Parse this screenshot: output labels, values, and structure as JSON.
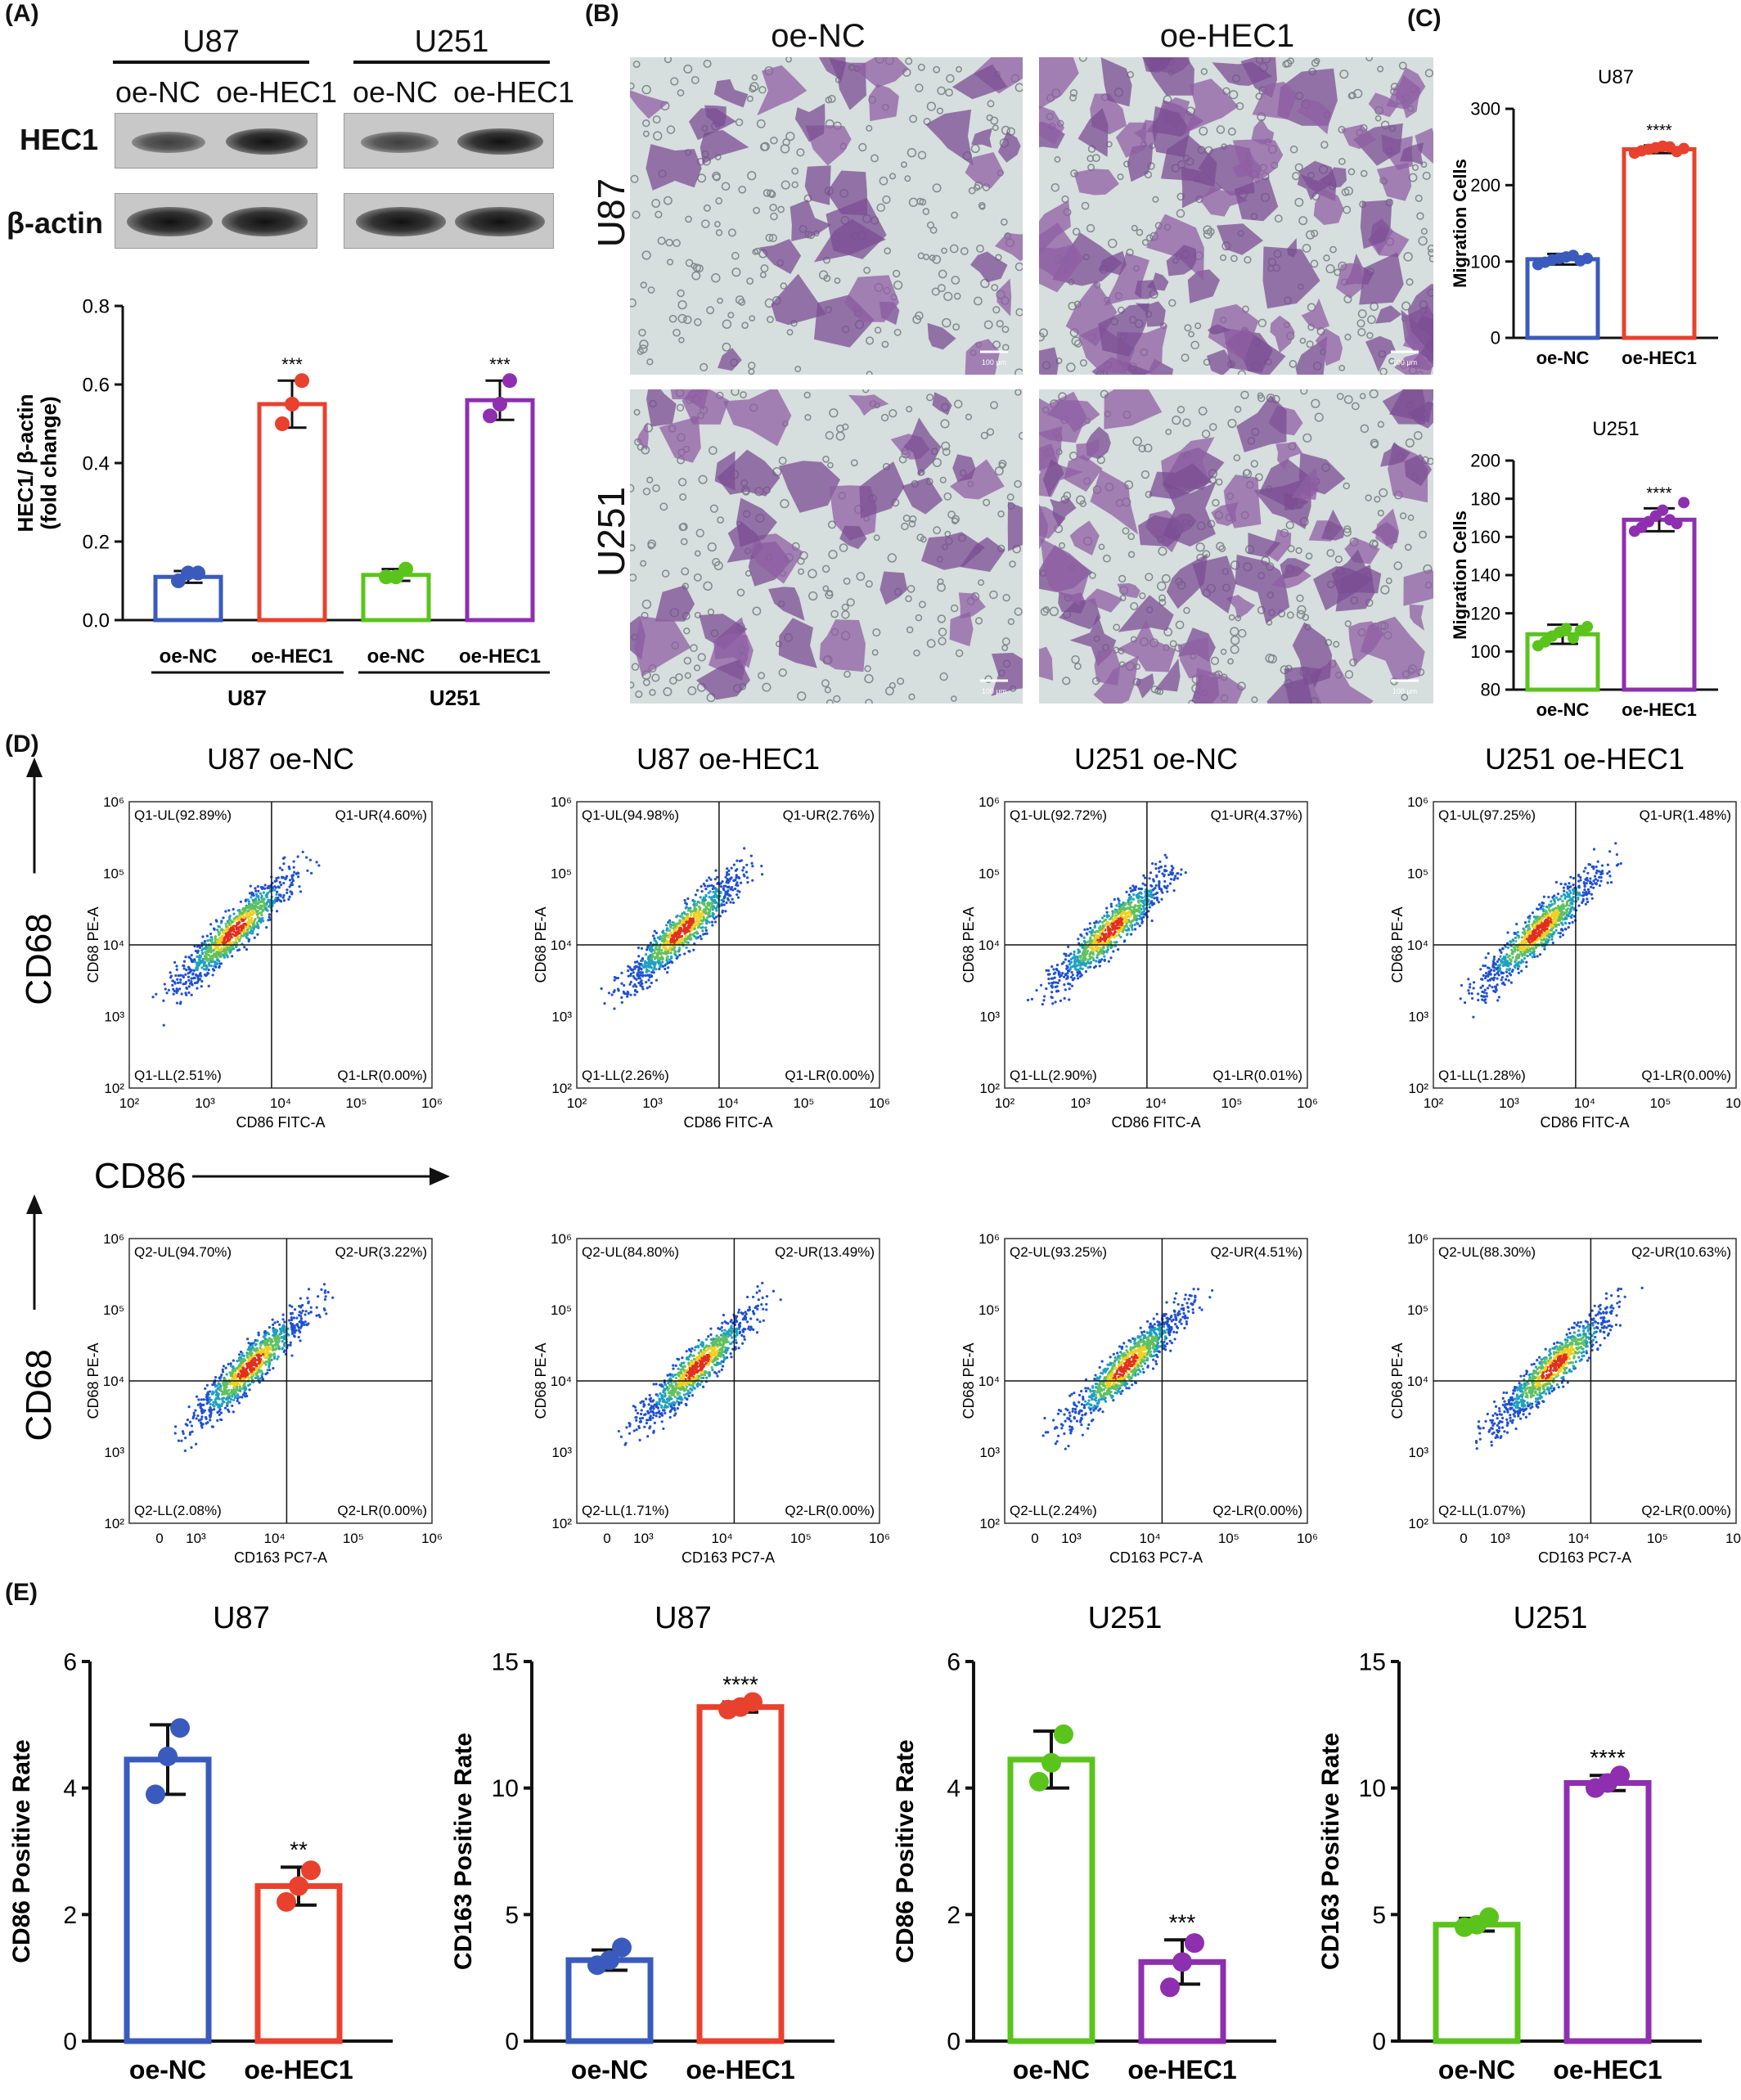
{
  "panels": {
    "a": "(A)",
    "b": "(B)",
    "c": "(C)",
    "d": "(D)",
    "e": "(E)"
  },
  "blot": {
    "groups": [
      "U87",
      "U251"
    ],
    "lanes": [
      "oe-NC",
      "oe-HEC1",
      "oe-NC",
      "oe-HEC1"
    ],
    "rows": [
      "HEC1",
      "β-actin"
    ]
  },
  "panel_b": {
    "columns": [
      "oe-NC",
      "oe-HEC1"
    ],
    "rows": [
      "U87",
      "U251"
    ],
    "scale_bar": "100 μm"
  },
  "flow": {
    "titles": [
      "U87   oe-NC",
      "U87   oe-HEC1",
      "U251   oe-NC",
      "U251   oe-HEC1"
    ],
    "row1": {
      "xlabel": "CD86 FITC-A",
      "ylabel": "CD68 PE-A",
      "big_x": "CD86",
      "big_y": "CD68",
      "quadrants": [
        [
          "Q1-UL(92.89%)",
          "Q1-UR(4.60%)",
          "Q1-LL(2.51%)",
          "Q1-LR(0.00%)"
        ],
        [
          "Q1-UL(94.98%)",
          "Q1-UR(2.76%)",
          "Q1-LL(2.26%)",
          "Q1-LR(0.00%)"
        ],
        [
          "Q1-UL(92.72%)",
          "Q1-UR(4.37%)",
          "Q1-LL(2.90%)",
          "Q1-LR(0.01%)"
        ],
        [
          "Q1-UL(97.25%)",
          "Q1-UR(1.48%)",
          "Q1-LL(1.28%)",
          "Q1-LR(0.00%)"
        ]
      ]
    },
    "row2": {
      "xlabel": "CD163 PC7-A",
      "ylabel": "CD68 PE-A",
      "big_x": "CD163",
      "big_y": "CD68",
      "quadrants": [
        [
          "Q2-UL(94.70%)",
          "Q2-UR(3.22%)",
          "Q2-LL(2.08%)",
          "Q2-LR(0.00%)"
        ],
        [
          "Q2-UL(84.80%)",
          "Q2-UR(13.49%)",
          "Q2-LL(1.71%)",
          "Q2-LR(0.00%)"
        ],
        [
          "Q2-UL(93.25%)",
          "Q2-UR(4.51%)",
          "Q2-LL(2.24%)",
          "Q2-LR(0.00%)"
        ],
        [
          "Q2-UL(88.30%)",
          "Q2-UR(10.63%)",
          "Q2-LL(1.07%)",
          "Q2-LR(0.00%)"
        ]
      ]
    }
  },
  "chart_data": [
    {
      "id": "A",
      "type": "bar",
      "ylabel": "HEC1/ β-actin (fold change)",
      "ylim": [
        0,
        0.8
      ],
      "yticks": [
        "0.0",
        "0.2",
        "0.4",
        "0.6",
        "0.8"
      ],
      "categories": [
        "oe-NC",
        "oe-HEC1",
        "oe-NC",
        "oe-HEC1"
      ],
      "groups": [
        "U87",
        "U251"
      ],
      "values": [
        0.11,
        0.55,
        0.115,
        0.56
      ],
      "points": [
        [
          0.1,
          0.12,
          0.12
        ],
        [
          0.5,
          0.55,
          0.61
        ],
        [
          0.11,
          0.11,
          0.13
        ],
        [
          0.52,
          0.55,
          0.61
        ]
      ],
      "err": [
        0.015,
        0.06,
        0.015,
        0.05
      ],
      "sig": [
        "",
        "***",
        "",
        "***"
      ],
      "colors": [
        "#3a5bbd",
        "#e8412d",
        "#5ac41c",
        "#8e2fb0"
      ]
    },
    {
      "id": "C1",
      "type": "bar",
      "title": "U87",
      "ylabel": "Migration Cells",
      "ylim": [
        0,
        300
      ],
      "yticks": [
        "0",
        "100",
        "200",
        "300"
      ],
      "categories": [
        "oe-NC",
        "oe-HEC1"
      ],
      "values": [
        103,
        247
      ],
      "points": [
        [
          96,
          99,
          102,
          104,
          106,
          108,
          101,
          104
        ],
        [
          242,
          245,
          247,
          249,
          251,
          250,
          244,
          248
        ]
      ],
      "err": [
        7,
        5
      ],
      "sig": [
        "",
        "****"
      ],
      "colors": [
        "#3a5bbd",
        "#e8412d"
      ]
    },
    {
      "id": "C2",
      "type": "bar",
      "title": "U251",
      "ylabel": "Migration Cells",
      "ylim": [
        80,
        200
      ],
      "yticks": [
        "80",
        "100",
        "120",
        "140",
        "160",
        "180",
        "200"
      ],
      "categories": [
        "oe-NC",
        "oe-HEC1"
      ],
      "values": [
        109,
        169
      ],
      "points": [
        [
          103,
          105,
          108,
          110,
          112,
          107,
          111,
          113
        ],
        [
          163,
          165,
          168,
          171,
          174,
          169,
          167,
          178
        ]
      ],
      "err": [
        5,
        6
      ],
      "sig": [
        "",
        "****"
      ],
      "colors": [
        "#5ac41c",
        "#8e2fb0"
      ]
    },
    {
      "id": "E1",
      "type": "bar",
      "title": "U87",
      "ylabel": "CD86 Positive Rate",
      "ylim": [
        0,
        6
      ],
      "yticks": [
        "0",
        "2",
        "4",
        "6"
      ],
      "categories": [
        "oe-NC",
        "oe-HEC1"
      ],
      "values": [
        4.45,
        2.45
      ],
      "points": [
        [
          3.9,
          4.5,
          4.95
        ],
        [
          2.2,
          2.45,
          2.7
        ]
      ],
      "err": [
        0.55,
        0.3
      ],
      "sig": [
        "",
        "**"
      ],
      "colors": [
        "#3a5bbd",
        "#e8412d"
      ]
    },
    {
      "id": "E2",
      "type": "bar",
      "title": "U87",
      "ylabel": "CD163 Positive Rate",
      "ylim": [
        0,
        15
      ],
      "yticks": [
        "0",
        "5",
        "10",
        "15"
      ],
      "categories": [
        "oe-NC",
        "oe-HEC1"
      ],
      "values": [
        3.2,
        13.2
      ],
      "points": [
        [
          3.0,
          3.2,
          3.7
        ],
        [
          13.1,
          13.2,
          13.4
        ]
      ],
      "err": [
        0.4,
        0.2
      ],
      "sig": [
        "",
        "****"
      ],
      "colors": [
        "#3a5bbd",
        "#e8412d"
      ]
    },
    {
      "id": "E3",
      "type": "bar",
      "title": "U251",
      "ylabel": "CD86 Positive Rate",
      "ylim": [
        0,
        6
      ],
      "yticks": [
        "0",
        "2",
        "4",
        "6"
      ],
      "categories": [
        "oe-NC",
        "oe-HEC1"
      ],
      "values": [
        4.45,
        1.25
      ],
      "points": [
        [
          4.1,
          4.4,
          4.85
        ],
        [
          0.85,
          1.25,
          1.55
        ]
      ],
      "err": [
        0.45,
        0.35
      ],
      "sig": [
        "",
        "***"
      ],
      "colors": [
        "#5ac41c",
        "#8e2fb0"
      ]
    },
    {
      "id": "E4",
      "type": "bar",
      "title": "U251",
      "ylabel": "CD163 Positive Rate",
      "ylim": [
        0,
        15
      ],
      "yticks": [
        "0",
        "5",
        "10",
        "15"
      ],
      "categories": [
        "oe-NC",
        "oe-HEC1"
      ],
      "values": [
        4.6,
        10.2
      ],
      "points": [
        [
          4.5,
          4.6,
          4.9
        ],
        [
          10.0,
          10.2,
          10.5
        ]
      ],
      "err": [
        0.25,
        0.3
      ],
      "sig": [
        "",
        "****"
      ],
      "colors": [
        "#5ac41c",
        "#8e2fb0"
      ]
    }
  ]
}
